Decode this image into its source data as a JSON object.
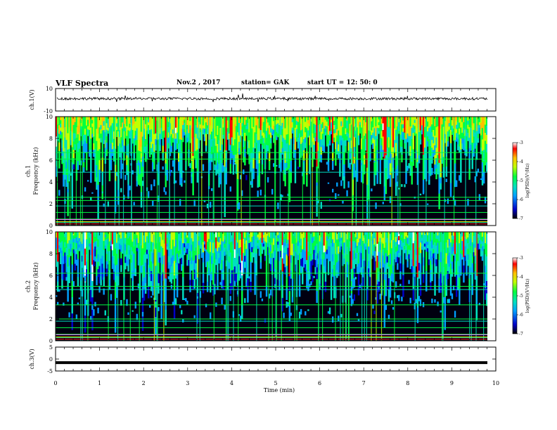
{
  "header": {
    "title": "VLF Spectra",
    "date": "Nov.2  , 2017",
    "station": "station= GAK",
    "start_ut": "start  UT  =   12: 50: 0"
  },
  "colors": {
    "trace": "#000000",
    "spectrogram_background": "#000010",
    "colorbar": [
      "#000000",
      "#0000c8",
      "#00a0ff",
      "#00e0c0",
      "#00ff40",
      "#c0ff00",
      "#ffc000",
      "#ff0000",
      "#ffffff"
    ]
  },
  "chart_data": [
    {
      "type": "line",
      "name": "ch1-waveform",
      "ylabel": "ch.1(V)",
      "ylim": [
        -10,
        10
      ],
      "yticks": [
        "10",
        "-10"
      ],
      "xlim": [
        0,
        10
      ],
      "description_level": "trace fluctuates around +1 V with small excursions"
    },
    {
      "type": "heatmap",
      "name": "ch1-spectrogram",
      "ylabel": "ch.1\nFrequency (kHz)",
      "ylim": [
        0,
        10
      ],
      "yticks": [
        "0",
        "2",
        "4",
        "6",
        "8",
        "10"
      ],
      "xlim": [
        0,
        9.85
      ],
      "colorbar": {
        "label": "log(PSD)(V²/Hz)",
        "range": [
          -7,
          -3
        ],
        "ticks": [
          "-3",
          "-4",
          "-5",
          "-6",
          "-7"
        ]
      },
      "horizontal_lines_khz": [
        0.3,
        0.6,
        1.2,
        1.8,
        2.3,
        2.6,
        4.9,
        6.1,
        6.7
      ]
    },
    {
      "type": "heatmap",
      "name": "ch2-spectrogram",
      "ylabel": "ch.2\nFrequency (kHz)",
      "ylim": [
        0,
        10
      ],
      "yticks": [
        "0",
        "2",
        "4",
        "6",
        "8",
        "10"
      ],
      "xlim": [
        0,
        9.85
      ],
      "colorbar": {
        "label": "log(PSD)(V²/Hz)",
        "range": [
          -7,
          -3
        ],
        "ticks": [
          "-3",
          "-4",
          "-5",
          "-6",
          "-7"
        ]
      },
      "horizontal_lines_khz": [
        0.3,
        0.6,
        1.2,
        1.8,
        2.0,
        3.3,
        4.7,
        5.0,
        6.2
      ]
    },
    {
      "type": "line",
      "name": "ch3-trace",
      "ylabel": "ch.3(V)",
      "ylim": [
        -5,
        5
      ],
      "yticks": [
        "5",
        "0",
        "-5"
      ],
      "xlim": [
        0,
        9.85
      ],
      "constant_value": -1.5
    }
  ],
  "xaxis": {
    "label": "Time (min)",
    "range": [
      0,
      10
    ],
    "ticks": [
      "0",
      "1",
      "2",
      "3",
      "4",
      "5",
      "6",
      "7",
      "8",
      "9",
      "10"
    ]
  }
}
